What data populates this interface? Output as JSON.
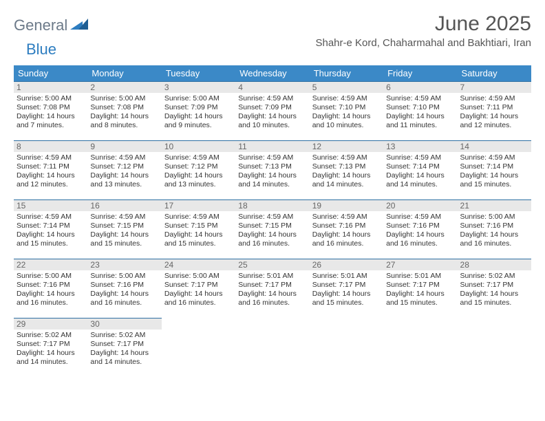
{
  "brand": {
    "general": "General",
    "blue": "Blue"
  },
  "title": "June 2025",
  "location": "Shahr-e Kord, Chaharmahal and Bakhtiari, Iran",
  "colors": {
    "header_bg": "#3b89c7",
    "header_text": "#ffffff",
    "daynum_bg": "#e8e8e8",
    "cell_border": "#2d6fa3",
    "title_color": "#555555"
  },
  "dayHeaders": [
    "Sunday",
    "Monday",
    "Tuesday",
    "Wednesday",
    "Thursday",
    "Friday",
    "Saturday"
  ],
  "weeks": [
    [
      {
        "n": "1",
        "sunrise": "Sunrise: 5:00 AM",
        "sunset": "Sunset: 7:08 PM",
        "day": "Daylight: 14 hours and 7 minutes."
      },
      {
        "n": "2",
        "sunrise": "Sunrise: 5:00 AM",
        "sunset": "Sunset: 7:08 PM",
        "day": "Daylight: 14 hours and 8 minutes."
      },
      {
        "n": "3",
        "sunrise": "Sunrise: 5:00 AM",
        "sunset": "Sunset: 7:09 PM",
        "day": "Daylight: 14 hours and 9 minutes."
      },
      {
        "n": "4",
        "sunrise": "Sunrise: 4:59 AM",
        "sunset": "Sunset: 7:09 PM",
        "day": "Daylight: 14 hours and 10 minutes."
      },
      {
        "n": "5",
        "sunrise": "Sunrise: 4:59 AM",
        "sunset": "Sunset: 7:10 PM",
        "day": "Daylight: 14 hours and 10 minutes."
      },
      {
        "n": "6",
        "sunrise": "Sunrise: 4:59 AM",
        "sunset": "Sunset: 7:10 PM",
        "day": "Daylight: 14 hours and 11 minutes."
      },
      {
        "n": "7",
        "sunrise": "Sunrise: 4:59 AM",
        "sunset": "Sunset: 7:11 PM",
        "day": "Daylight: 14 hours and 12 minutes."
      }
    ],
    [
      {
        "n": "8",
        "sunrise": "Sunrise: 4:59 AM",
        "sunset": "Sunset: 7:11 PM",
        "day": "Daylight: 14 hours and 12 minutes."
      },
      {
        "n": "9",
        "sunrise": "Sunrise: 4:59 AM",
        "sunset": "Sunset: 7:12 PM",
        "day": "Daylight: 14 hours and 13 minutes."
      },
      {
        "n": "10",
        "sunrise": "Sunrise: 4:59 AM",
        "sunset": "Sunset: 7:12 PM",
        "day": "Daylight: 14 hours and 13 minutes."
      },
      {
        "n": "11",
        "sunrise": "Sunrise: 4:59 AM",
        "sunset": "Sunset: 7:13 PM",
        "day": "Daylight: 14 hours and 14 minutes."
      },
      {
        "n": "12",
        "sunrise": "Sunrise: 4:59 AM",
        "sunset": "Sunset: 7:13 PM",
        "day": "Daylight: 14 hours and 14 minutes."
      },
      {
        "n": "13",
        "sunrise": "Sunrise: 4:59 AM",
        "sunset": "Sunset: 7:14 PM",
        "day": "Daylight: 14 hours and 14 minutes."
      },
      {
        "n": "14",
        "sunrise": "Sunrise: 4:59 AM",
        "sunset": "Sunset: 7:14 PM",
        "day": "Daylight: 14 hours and 15 minutes."
      }
    ],
    [
      {
        "n": "15",
        "sunrise": "Sunrise: 4:59 AM",
        "sunset": "Sunset: 7:14 PM",
        "day": "Daylight: 14 hours and 15 minutes."
      },
      {
        "n": "16",
        "sunrise": "Sunrise: 4:59 AM",
        "sunset": "Sunset: 7:15 PM",
        "day": "Daylight: 14 hours and 15 minutes."
      },
      {
        "n": "17",
        "sunrise": "Sunrise: 4:59 AM",
        "sunset": "Sunset: 7:15 PM",
        "day": "Daylight: 14 hours and 15 minutes."
      },
      {
        "n": "18",
        "sunrise": "Sunrise: 4:59 AM",
        "sunset": "Sunset: 7:15 PM",
        "day": "Daylight: 14 hours and 16 minutes."
      },
      {
        "n": "19",
        "sunrise": "Sunrise: 4:59 AM",
        "sunset": "Sunset: 7:16 PM",
        "day": "Daylight: 14 hours and 16 minutes."
      },
      {
        "n": "20",
        "sunrise": "Sunrise: 4:59 AM",
        "sunset": "Sunset: 7:16 PM",
        "day": "Daylight: 14 hours and 16 minutes."
      },
      {
        "n": "21",
        "sunrise": "Sunrise: 5:00 AM",
        "sunset": "Sunset: 7:16 PM",
        "day": "Daylight: 14 hours and 16 minutes."
      }
    ],
    [
      {
        "n": "22",
        "sunrise": "Sunrise: 5:00 AM",
        "sunset": "Sunset: 7:16 PM",
        "day": "Daylight: 14 hours and 16 minutes."
      },
      {
        "n": "23",
        "sunrise": "Sunrise: 5:00 AM",
        "sunset": "Sunset: 7:16 PM",
        "day": "Daylight: 14 hours and 16 minutes."
      },
      {
        "n": "24",
        "sunrise": "Sunrise: 5:00 AM",
        "sunset": "Sunset: 7:17 PM",
        "day": "Daylight: 14 hours and 16 minutes."
      },
      {
        "n": "25",
        "sunrise": "Sunrise: 5:01 AM",
        "sunset": "Sunset: 7:17 PM",
        "day": "Daylight: 14 hours and 16 minutes."
      },
      {
        "n": "26",
        "sunrise": "Sunrise: 5:01 AM",
        "sunset": "Sunset: 7:17 PM",
        "day": "Daylight: 14 hours and 15 minutes."
      },
      {
        "n": "27",
        "sunrise": "Sunrise: 5:01 AM",
        "sunset": "Sunset: 7:17 PM",
        "day": "Daylight: 14 hours and 15 minutes."
      },
      {
        "n": "28",
        "sunrise": "Sunrise: 5:02 AM",
        "sunset": "Sunset: 7:17 PM",
        "day": "Daylight: 14 hours and 15 minutes."
      }
    ],
    [
      {
        "n": "29",
        "sunrise": "Sunrise: 5:02 AM",
        "sunset": "Sunset: 7:17 PM",
        "day": "Daylight: 14 hours and 14 minutes."
      },
      {
        "n": "30",
        "sunrise": "Sunrise: 5:02 AM",
        "sunset": "Sunset: 7:17 PM",
        "day": "Daylight: 14 hours and 14 minutes."
      },
      null,
      null,
      null,
      null,
      null
    ]
  ]
}
